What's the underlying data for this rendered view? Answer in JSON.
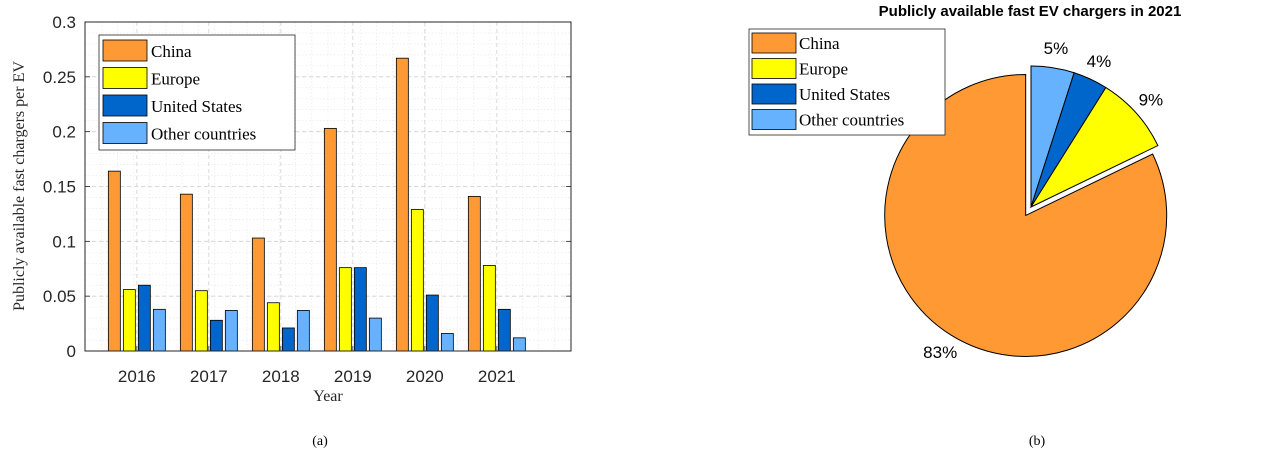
{
  "chart_data": [
    {
      "type": "bar",
      "panel_label": "(a)",
      "title": "",
      "xlabel": "Year",
      "ylabel": "Publicly available fast chargers per EV",
      "categories": [
        "2016",
        "2017",
        "2018",
        "2019",
        "2020",
        "2021"
      ],
      "series": [
        {
          "name": "China",
          "color": "#FF9933",
          "values": [
            0.164,
            0.143,
            0.103,
            0.203,
            0.267,
            0.141
          ]
        },
        {
          "name": "Europe",
          "color": "#FFFF00",
          "values": [
            0.056,
            0.055,
            0.044,
            0.076,
            0.129,
            0.078
          ]
        },
        {
          "name": "United States",
          "color": "#0066CC",
          "values": [
            0.06,
            0.028,
            0.021,
            0.076,
            0.051,
            0.038
          ]
        },
        {
          "name": "Other countries",
          "color": "#66B2FF",
          "values": [
            0.038,
            0.037,
            0.037,
            0.03,
            0.016,
            0.012
          ]
        }
      ],
      "ylim": [
        0,
        0.3
      ],
      "yticks": [
        "0",
        "0.05",
        "0.1",
        "0.15",
        "0.2",
        "0.25",
        "0.3"
      ],
      "grid": true,
      "legend_position": "top-left"
    },
    {
      "type": "pie",
      "panel_label": "(b)",
      "title": "Publicly available fast EV chargers in 2021",
      "slices": [
        {
          "name": "China",
          "value": 83,
          "label": "83%",
          "color": "#FF9933",
          "exploded": true
        },
        {
          "name": "Europe",
          "value": 9,
          "label": "9%",
          "color": "#FFFF00",
          "exploded": false
        },
        {
          "name": "United States",
          "value": 4,
          "label": "4%",
          "color": "#0066CC",
          "exploded": false
        },
        {
          "name": "Other countries",
          "value": 5,
          "label": "5%",
          "color": "#66B2FF",
          "exploded": false
        }
      ],
      "legend_position": "top-left"
    }
  ]
}
